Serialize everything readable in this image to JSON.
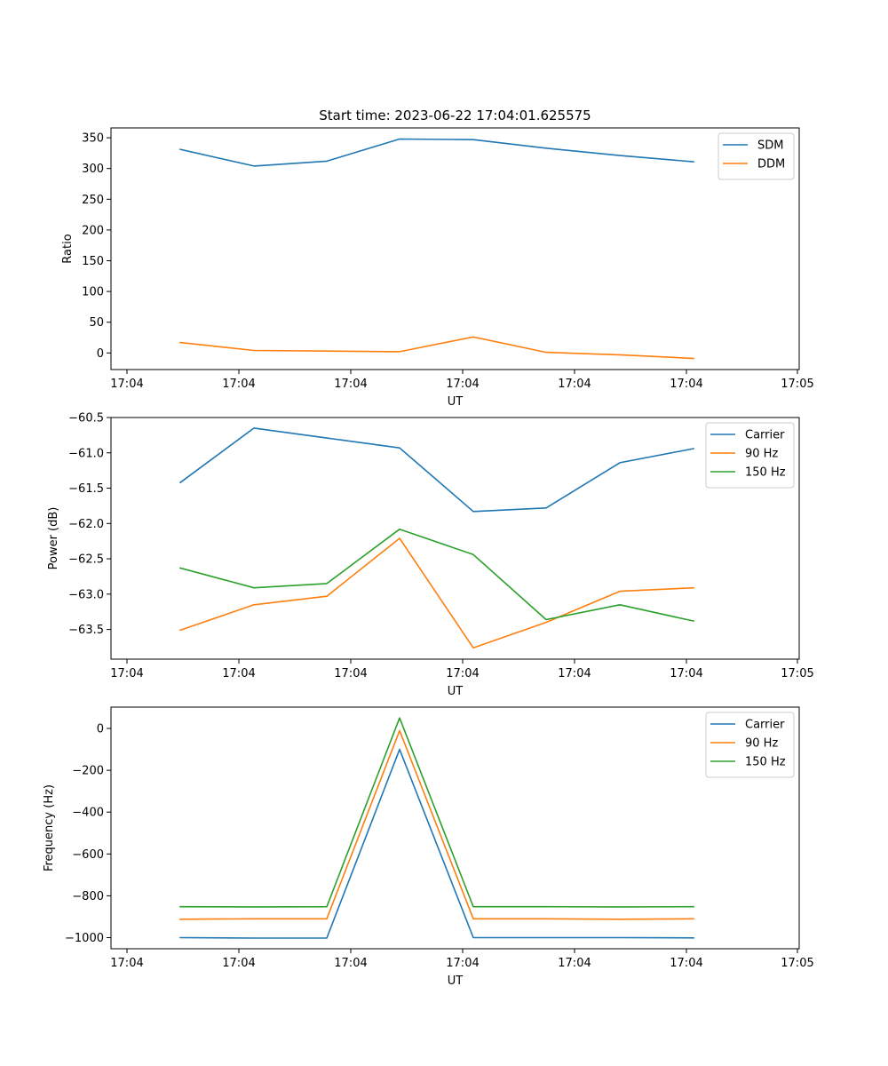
{
  "chart_data": [
    {
      "type": "line",
      "title": "Start time: 2023-06-22 17:04:01.625575",
      "xlabel": "UT",
      "ylabel": "Ratio",
      "x_tick_labels": [
        "17:04",
        "17:04",
        "17:04",
        "17:04",
        "17:04",
        "17:04",
        "17:05"
      ],
      "y_ticks": [
        0,
        50,
        100,
        150,
        200,
        250,
        300,
        350
      ],
      "y_tick_labels": [
        "0",
        "50",
        "100",
        "150",
        "200",
        "250",
        "300",
        "350"
      ],
      "ylim": [
        -27,
        366
      ],
      "legend_position": "top-right",
      "colors": {
        "SDM": "#1f77b4",
        "DDM": "#ff7f0e"
      },
      "series": [
        {
          "name": "SDM",
          "values": [
            331,
            304,
            312,
            348,
            347,
            333,
            321,
            311
          ]
        },
        {
          "name": "DDM",
          "values": [
            17,
            4,
            3,
            2,
            26,
            1,
            -3,
            -9
          ]
        }
      ]
    },
    {
      "type": "line",
      "title": "",
      "xlabel": "UT",
      "ylabel": "Power (dB)",
      "x_tick_labels": [
        "17:04",
        "17:04",
        "17:04",
        "17:04",
        "17:04",
        "17:04",
        "17:05"
      ],
      "y_ticks": [
        -63.5,
        -63.0,
        -62.5,
        -62.0,
        -61.5,
        -61.0,
        -60.5
      ],
      "y_tick_labels": [
        "−63.5",
        "−63.0",
        "−62.5",
        "−62.0",
        "−61.5",
        "−61.0",
        "−60.5"
      ],
      "ylim": [
        -63.92,
        -60.5
      ],
      "legend_position": "top-right",
      "colors": {
        "Carrier": "#1f77b4",
        "90 Hz": "#ff7f0e",
        "150 Hz": "#2ca02c"
      },
      "series": [
        {
          "name": "Carrier",
          "values": [
            -61.42,
            -60.65,
            -60.79,
            -60.93,
            -61.83,
            -61.78,
            -61.14,
            -60.94
          ]
        },
        {
          "name": "90 Hz",
          "values": [
            -63.51,
            -63.15,
            -63.03,
            -62.21,
            -63.76,
            -63.4,
            -62.96,
            -62.91
          ]
        },
        {
          "name": "150 Hz",
          "values": [
            -62.63,
            -62.91,
            -62.85,
            -62.08,
            -62.44,
            -63.36,
            -63.15,
            -63.38
          ]
        }
      ]
    },
    {
      "type": "line",
      "title": "",
      "xlabel": "UT",
      "ylabel": "Frequency (Hz)",
      "x_tick_labels": [
        "17:04",
        "17:04",
        "17:04",
        "17:04",
        "17:04",
        "17:04",
        "17:05"
      ],
      "y_ticks": [
        -1000,
        -800,
        -600,
        -400,
        -200,
        0
      ],
      "y_tick_labels": [
        "−1000",
        "−800",
        "−600",
        "−400",
        "−200",
        "0"
      ],
      "ylim": [
        -1053,
        102
      ],
      "legend_position": "top-right",
      "colors": {
        "Carrier": "#1f77b4",
        "90 Hz": "#ff7f0e",
        "150 Hz": "#2ca02c"
      },
      "series": [
        {
          "name": "Carrier",
          "values": [
            -1000,
            -1002,
            -1002,
            -100,
            -1000,
            -1000,
            -1000,
            -1001
          ]
        },
        {
          "name": "90 Hz",
          "values": [
            -912,
            -910,
            -910,
            -10,
            -910,
            -910,
            -912,
            -910
          ]
        },
        {
          "name": "150 Hz",
          "values": [
            -852,
            -853,
            -852,
            50,
            -852,
            -852,
            -853,
            -852
          ]
        }
      ]
    }
  ]
}
